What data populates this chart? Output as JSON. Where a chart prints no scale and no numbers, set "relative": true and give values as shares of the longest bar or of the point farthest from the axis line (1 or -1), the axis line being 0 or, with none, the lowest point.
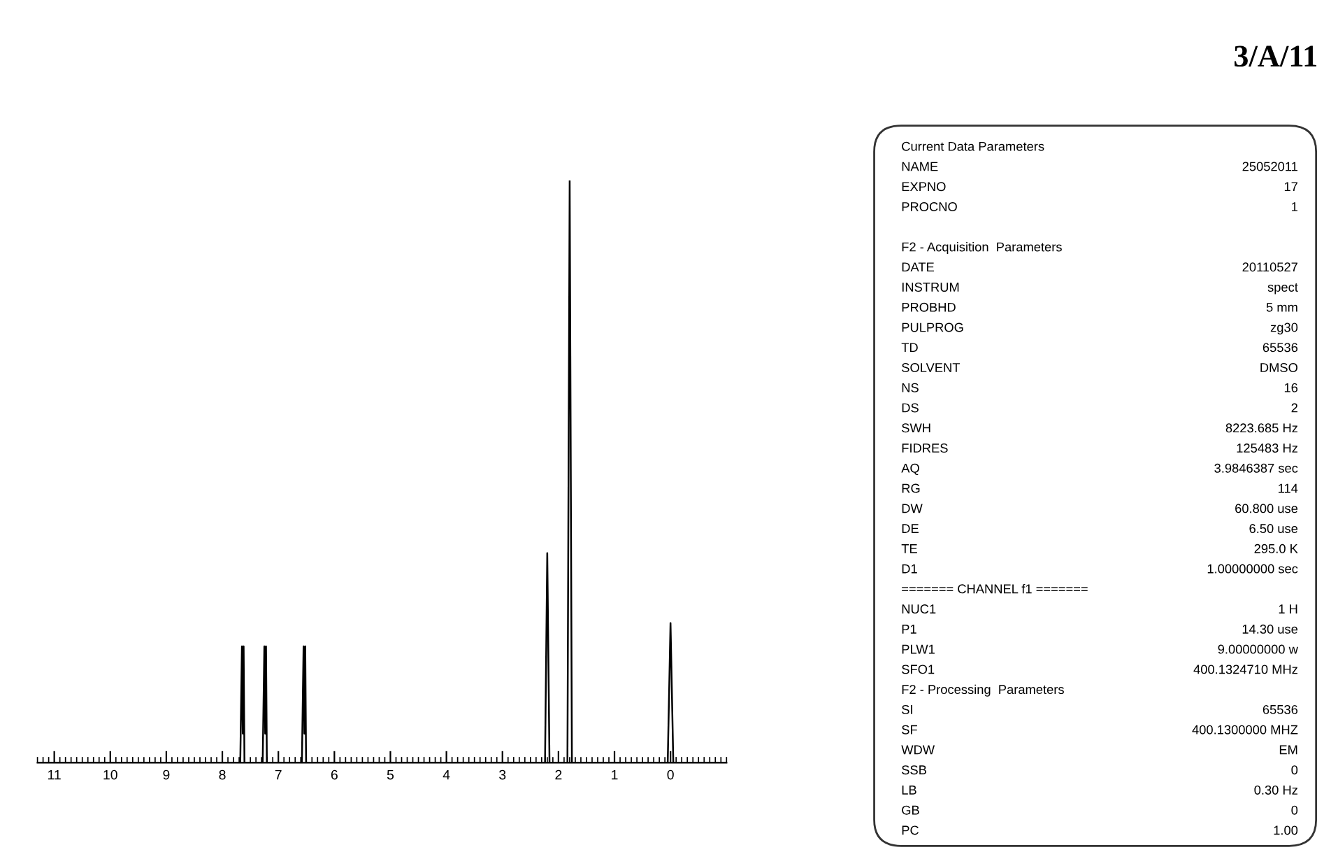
{
  "chart_data": [
    {
      "type": "line",
      "relative": true,
      "xlim": [
        11.3,
        -1.0
      ],
      "xticks": [
        11,
        10,
        9,
        8,
        7,
        6,
        5,
        4,
        3,
        2,
        1,
        0
      ],
      "grid": false,
      "tick_labels": "x",
      "marker": "none",
      "line_style": "solid",
      "series": [
        {
          "color": "#000000",
          "x": [
            11.3,
            7.68,
            7.65,
            7.635,
            7.62,
            7.605,
            7.58,
            7.28,
            7.25,
            7.235,
            7.22,
            7.205,
            7.18,
            6.58,
            6.55,
            6.535,
            6.52,
            6.505,
            6.48,
            2.24,
            2.2,
            2.16,
            2.0,
            1.84,
            1.8,
            1.76,
            0.05,
            0.0,
            -0.05,
            -1.0
          ],
          "values": [
            0,
            0,
            0.2,
            0.05,
            0.2,
            0,
            0,
            0,
            0.2,
            0.05,
            0.2,
            0,
            0,
            0,
            0.2,
            0.05,
            0.2,
            0,
            0,
            0,
            0.36,
            0,
            0,
            0,
            1,
            0,
            0,
            0.24,
            0,
            0
          ]
        }
      ]
    },
    {
      "type": "other",
      "title": "3/A/11",
      "categories": [
        "Current Data Parameters",
        "NAME",
        "EXPNO",
        "PROCNO",
        null,
        "F2 - Acquisition  Parameters",
        "DATE",
        "INSTRUM",
        "PROBHD",
        "PULPROG",
        "TD",
        "SOLVENT",
        "NS",
        "DS",
        "SWH",
        "FIDRES",
        "AQ",
        "RG",
        "DW",
        "DE",
        "TE",
        "D1",
        "======= CHANNEL f1 =======",
        "NUC1",
        "P1",
        "PLW1",
        "SFO1",
        "F2 - Processing  Parameters",
        "SI",
        "SF",
        "WDW",
        "SSB",
        "LB",
        "GB",
        "PC"
      ],
      "value_labels": [
        null,
        "25052011",
        "17",
        "1",
        null,
        null,
        "20110527",
        "spect",
        "5 mm",
        "zg30",
        "65536",
        "DMSO",
        "16",
        "2",
        "8223.685 Hz",
        "125483 Hz",
        "3.9846387 sec",
        "114",
        "60.800 use",
        "6.50 use",
        "295.0 K",
        "1.00000000 sec",
        null,
        "1 H",
        "14.30 use",
        "9.00000000 w",
        "400.1324710 MHz",
        null,
        "65536",
        "400.1300000 MHZ",
        "EM",
        "0",
        "0.30 Hz",
        "0",
        "1.00"
      ]
    }
  ]
}
